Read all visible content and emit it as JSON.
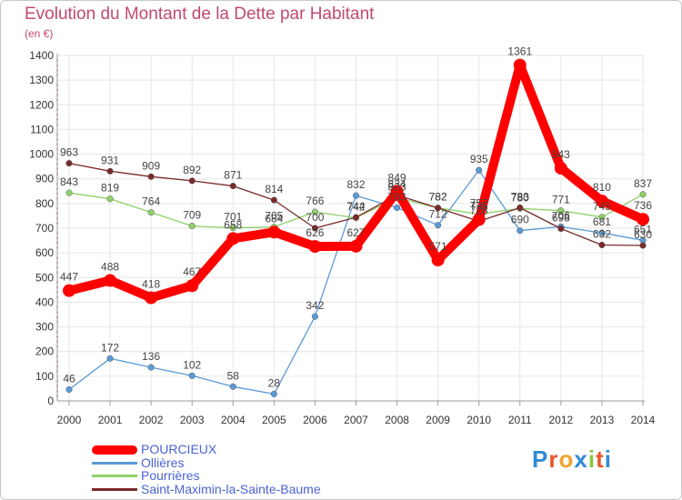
{
  "title": "Evolution du Montant de la Dette par Habitant",
  "unit": "(en €)",
  "brand": {
    "text": "Proxiti",
    "letter_colors": [
      "#2f8bd6",
      "#e8562a",
      "#f2a22c",
      "#2f8bd6",
      "#8cc641",
      "#e8562a",
      "#2f8bd6"
    ]
  },
  "chart_data": {
    "type": "line",
    "x": [
      2000,
      2001,
      2002,
      2003,
      2004,
      2005,
      2006,
      2007,
      2008,
      2009,
      2010,
      2011,
      2012,
      2013,
      2014
    ],
    "xlabels": [
      "2000",
      "2001",
      "2002",
      "2003",
      "2004",
      "2005",
      "2006",
      "2007",
      "2008",
      "2009",
      "2010",
      "2011",
      "2012",
      "2013",
      "2014"
    ],
    "ylim": [
      0,
      1400
    ],
    "yticks": [
      0,
      100,
      200,
      300,
      400,
      500,
      600,
      700,
      800,
      900,
      1000,
      1100,
      1200,
      1300,
      1400
    ],
    "ytick_labels": [
      "0",
      "100",
      "200",
      "300",
      "400",
      "500",
      "600",
      "700",
      "800",
      "900",
      "1000",
      "1100",
      "1200",
      "1300",
      "1400"
    ],
    "grid": true,
    "legend_position": "bottom-left",
    "series": [
      {
        "name": "POURCIEUX",
        "color": "#ff0000",
        "emphasis": true,
        "values": [
          447,
          488,
          418,
          467,
          658,
          684,
          626,
          627,
          849,
          571,
          735,
          1361,
          943,
          810,
          736
        ],
        "value_labels": [
          "447",
          "488",
          "418",
          "467",
          "658",
          "684",
          "626",
          "627",
          "849",
          "571",
          "735",
          "1361",
          "943",
          "810",
          "736"
        ]
      },
      {
        "name": "Ollières",
        "color": "#5a9bd8",
        "values": [
          46,
          172,
          136,
          102,
          58,
          28,
          342,
          832,
          783,
          712,
          935,
          690,
          706,
          681,
          651
        ],
        "value_labels": [
          "46",
          "172",
          "136",
          "102",
          "58",
          "28",
          "342",
          "832",
          "783",
          "712",
          "935",
          "690",
          "706",
          "681",
          "651"
        ]
      },
      {
        "name": "Pourrières",
        "color": "#8fd16a",
        "values": [
          843,
          819,
          764,
          709,
          701,
          705,
          766,
          742,
          823,
          782,
          757,
          780,
          771,
          745,
          837
        ],
        "value_labels": [
          "843",
          "819",
          "764",
          "709",
          "701",
          "705",
          "766",
          "742",
          "823",
          "782",
          "757",
          "780",
          "771",
          "745",
          "837"
        ]
      },
      {
        "name": "Saint-Maximin-la-Sainte-Baume",
        "color": "#7a2a2a",
        "values": [
          963,
          931,
          909,
          892,
          871,
          814,
          700,
          744,
          834,
          782,
          728,
          783,
          698,
          632,
          630
        ],
        "value_labels": [
          "963",
          "931",
          "909",
          "892",
          "871",
          "814",
          "700",
          "744",
          "834",
          "782",
          "728",
          "783",
          "698",
          "632",
          "630"
        ]
      }
    ]
  }
}
